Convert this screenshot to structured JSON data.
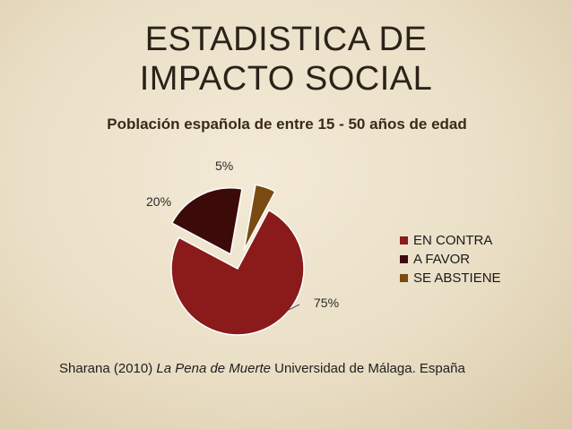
{
  "slide": {
    "title_line1": "ESTADISTICA DE",
    "title_line2": "IMPACTO SOCIAL"
  },
  "chart_data": {
    "type": "pie",
    "title": "Población española de entre 15 - 50 años de edad",
    "categories": [
      "EN CONTRA",
      "A FAVOR",
      "SE ABSTIENE"
    ],
    "values": [
      75,
      20,
      5
    ],
    "data_labels": [
      "75%",
      "20%",
      "5%"
    ],
    "colors": [
      "#8b1a1a",
      "#3d0a0a",
      "#7a4a12"
    ],
    "exploded": true,
    "legend_position": "right"
  },
  "citation": {
    "prefix": "Sharana (2010) ",
    "book_title": "La Pena de Muerte",
    "suffix": " Universidad de Málaga. España"
  }
}
